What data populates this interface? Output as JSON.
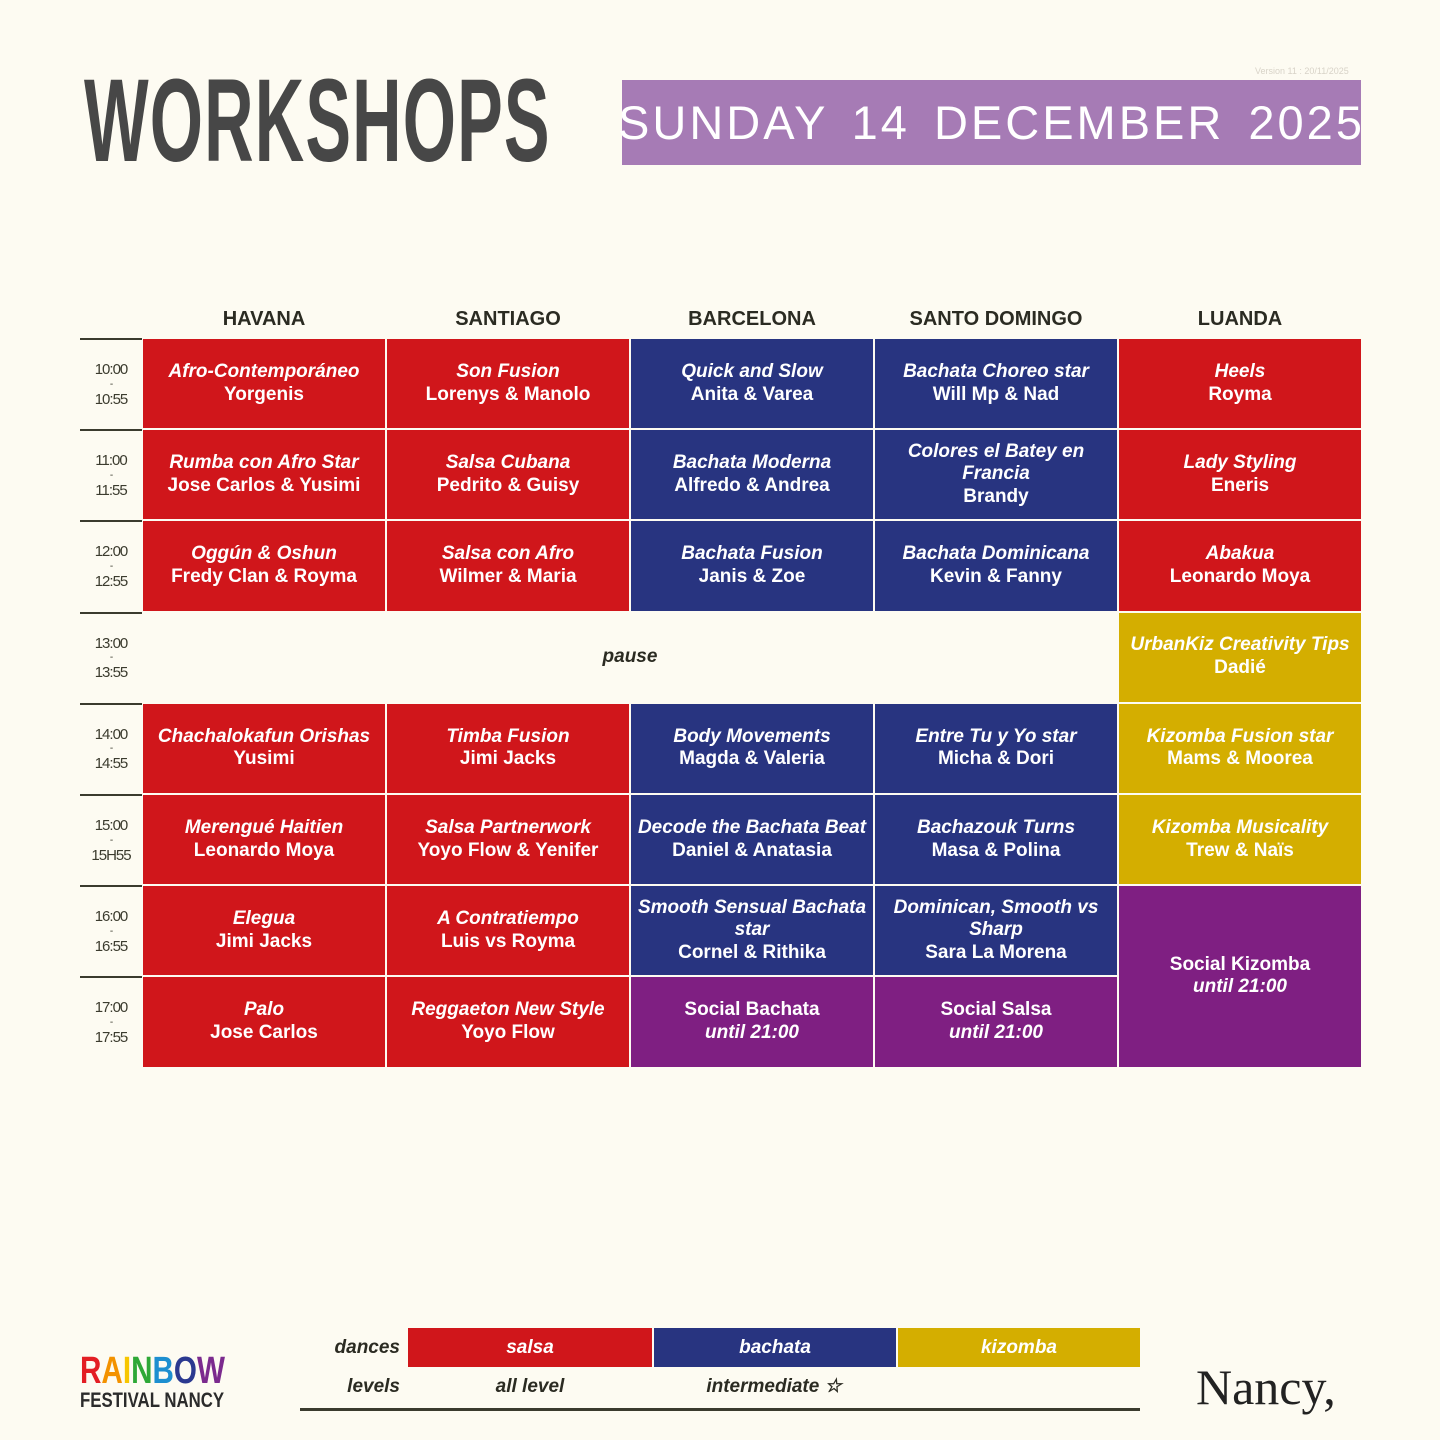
{
  "header": {
    "title": "WORKSHOPS",
    "date": "SUNDAY 14 DECEMBER 2025",
    "version": "Version 11 : 20/11/2025"
  },
  "colors": {
    "salsa": "#d0161b",
    "bachata": "#283480",
    "kizomba": "#d4ae00",
    "social": "#7f1f82",
    "date_bg": "#a67bb5"
  },
  "rooms": [
    "HAVANA",
    "SANTIAGO",
    "BARCELONA",
    "SANTO DOMINGO",
    "LUANDA"
  ],
  "times": [
    [
      "10:00",
      "10:55"
    ],
    [
      "11:00",
      "11:55"
    ],
    [
      "12:00",
      "12:55"
    ],
    [
      "13:00",
      "13:55"
    ],
    [
      "14:00",
      "14:55"
    ],
    [
      "15:00",
      "15H55"
    ],
    [
      "16:00",
      "16:55"
    ],
    [
      "17:00",
      "17:55"
    ]
  ],
  "rows": [
    [
      {
        "t": "Afro-Contemporáneo",
        "p": "Yorgenis",
        "k": "salsa"
      },
      {
        "t": "Son Fusion",
        "p": "Lorenys & Manolo",
        "k": "salsa"
      },
      {
        "t": "Quick and Slow",
        "p": "Anita & Varea",
        "k": "bachata"
      },
      {
        "t": "Bachata Choreo star",
        "p": "Will Mp & Nad",
        "k": "bachata"
      },
      {
        "t": "Heels",
        "p": "Royma",
        "k": "salsa"
      }
    ],
    [
      {
        "t": "Rumba con Afro Star",
        "p": "Jose Carlos & Yusimi",
        "k": "salsa"
      },
      {
        "t": "Salsa Cubana",
        "p": "Pedrito & Guisy",
        "k": "salsa"
      },
      {
        "t": "Bachata Moderna",
        "p": "Alfredo & Andrea",
        "k": "bachata"
      },
      {
        "t": "Colores el Batey en Francia",
        "p": "Brandy",
        "k": "bachata"
      },
      {
        "t": "Lady Styling",
        "p": "Eneris",
        "k": "salsa"
      }
    ],
    [
      {
        "t": "Oggún & Oshun",
        "p": "Fredy Clan & Royma",
        "k": "salsa"
      },
      {
        "t": "Salsa con Afro",
        "p": "Wilmer & Maria",
        "k": "salsa"
      },
      {
        "t": "Bachata Fusion",
        "p": "Janis & Zoe",
        "k": "bachata"
      },
      {
        "t": "Bachata Dominicana",
        "p": "Kevin & Fanny",
        "k": "bachata"
      },
      {
        "t": "Abakua",
        "p": "Leonardo Moya",
        "k": "salsa"
      }
    ],
    [
      {
        "t": "pause",
        "p": "",
        "k": "pause",
        "colspan": 4
      },
      {
        "t": "UrbanKiz Creativity Tips",
        "p": "Dadié",
        "k": "kizomba"
      }
    ],
    [
      {
        "t": "Chachalokafun Orishas",
        "p": "Yusimi",
        "k": "salsa"
      },
      {
        "t": "Timba Fusion",
        "p": "Jimi Jacks",
        "k": "salsa"
      },
      {
        "t": "Body Movements",
        "p": "Magda & Valeria",
        "k": "bachata"
      },
      {
        "t": "Entre Tu y Yo star",
        "p": "Micha & Dori",
        "k": "bachata"
      },
      {
        "t": "Kizomba Fusion star",
        "p": "Mams & Moorea",
        "k": "kizomba"
      }
    ],
    [
      {
        "t": "Merengué Haitien",
        "p": "Leonardo Moya",
        "k": "salsa"
      },
      {
        "t": "Salsa Partnerwork",
        "p": "Yoyo Flow & Yenifer",
        "k": "salsa"
      },
      {
        "t": "Decode the Bachata Beat",
        "p": "Daniel & Anatasia",
        "k": "bachata"
      },
      {
        "t": "Bachazouk Turns",
        "p": "Masa & Polina",
        "k": "bachata"
      },
      {
        "t": "Kizomba Musicality",
        "p": "Trew & Naïs",
        "k": "kizomba"
      }
    ],
    [
      {
        "t": "Elegua",
        "p": "Jimi Jacks",
        "k": "salsa"
      },
      {
        "t": "A Contratiempo",
        "p": "Luis vs Royma",
        "k": "salsa"
      },
      {
        "t": "Smooth Sensual Bachata star",
        "p": "Cornel & Rithika",
        "k": "bachata"
      },
      {
        "t": "Dominican, Smooth vs Sharp",
        "p": "Sara La Morena",
        "k": "bachata"
      },
      {
        "t": "Social Kizomba",
        "p": "until 21:00",
        "k": "social",
        "rowspan": 2
      }
    ],
    [
      {
        "t": "Palo",
        "p": "Jose Carlos",
        "k": "salsa"
      },
      {
        "t": "Reggaeton New Style",
        "p": "Yoyo Flow",
        "k": "salsa"
      },
      {
        "t": "Social Bachata",
        "p": "until 21:00",
        "k": "social"
      },
      {
        "t": "Social Salsa",
        "p": "until 21:00",
        "k": "social"
      }
    ]
  ],
  "legend": {
    "dances_label": "dances",
    "levels_label": "levels",
    "dances": [
      "salsa",
      "bachata",
      "kizomba"
    ],
    "levels": [
      "all level",
      "intermediate ☆",
      ""
    ]
  },
  "logos": {
    "rainbow": "RAINBOW",
    "festival": "FESTIVAL NANCY",
    "nancy": "Nancy,"
  }
}
